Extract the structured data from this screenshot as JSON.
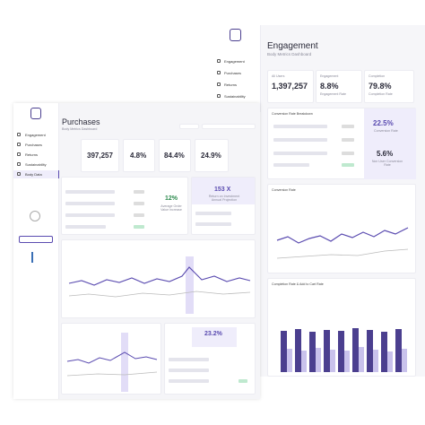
{
  "back": {
    "nav": [
      "Engagement",
      "Purchases",
      "Returns",
      "Sustainability"
    ],
    "title": "Engagement",
    "subtitle": "Body Metrics Dashboard",
    "kpis": [
      {
        "label": "All Users",
        "value": "1,397,257"
      },
      {
        "label": "Engagement",
        "value": "8.8%",
        "sub": "Engagement Rate"
      },
      {
        "label": "Completion",
        "value": "79.8%",
        "sub": "Completion Rate"
      }
    ],
    "breakdown_title": "Conversion Rate Breakdown",
    "conversion": {
      "value": "22.5%",
      "label": "Conversion Rate"
    },
    "non_user": {
      "value": "5.6%",
      "label": "Non User Conversion Rate"
    },
    "chart1_title": "Conversion Rate",
    "chart2_title": "Completion Rate & Add to Cart Rate"
  },
  "front": {
    "nav": [
      "Engagement",
      "Purchases",
      "Returns",
      "Sustainability",
      "Body Data"
    ],
    "title": "Purchases",
    "subtitle": "Body Metrics Dashboard",
    "kpis": [
      "397,257",
      "4.8%",
      "84.4%",
      "24.9%"
    ],
    "aov": {
      "value": "12%",
      "label": "Average Order Value Increase"
    },
    "roi": {
      "value": "153 X",
      "label": "Return on Investment Annual Projection"
    },
    "bottom_value": "23.2%"
  }
}
